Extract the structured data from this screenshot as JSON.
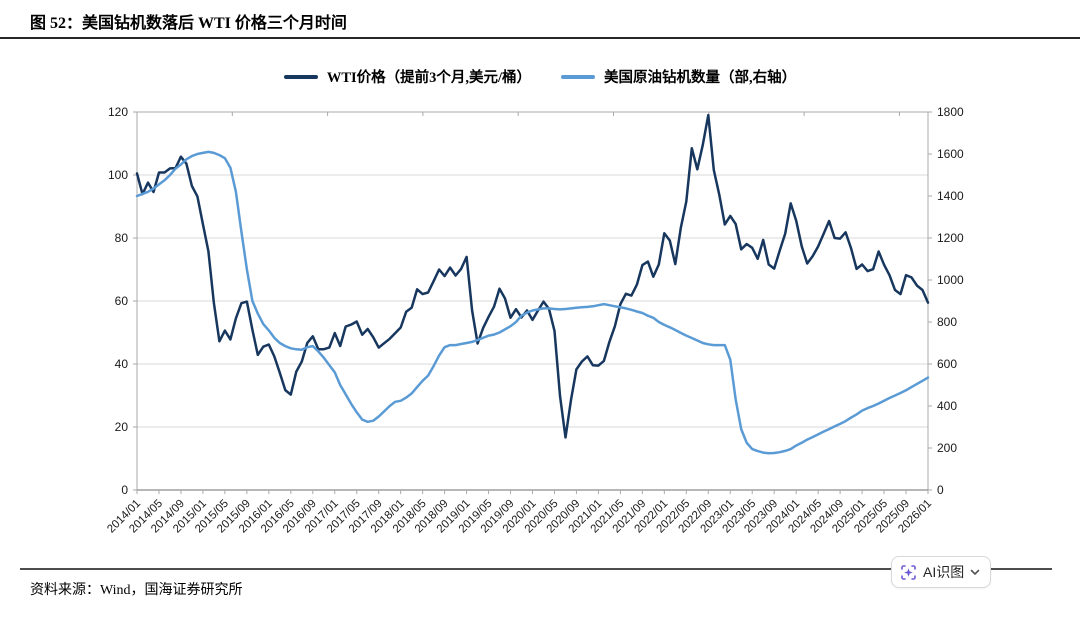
{
  "header": {
    "title": "图 52：美国钻机数落后 WTI 价格三个月时间"
  },
  "footer": {
    "source": "资料来源：Wind，国海证券研究所"
  },
  "ai_button": {
    "label": "AI识图",
    "icon": "scan-sparkle-icon",
    "chevron": "chevron-down-icon"
  },
  "colors": {
    "wti": "#17375E",
    "rigs": "#5B9BD5",
    "grid": "#D9D9D9",
    "box": "#A9A9A9",
    "axis_text": "#1a1a1a",
    "accent_purple": "#6B5BD2"
  },
  "chart_data": {
    "type": "line",
    "title": "图 52：美国钻机数落后 WTI 价格三个月时间",
    "x_start": "2014/01",
    "x_end": "2026/01",
    "x_frequency": "monthly",
    "grid": "horizontal",
    "legend_position": "top",
    "x_tick_labels": [
      "2014/01",
      "2014/05",
      "2014/09",
      "2015/01",
      "2015/05",
      "2015/09",
      "2016/01",
      "2016/05",
      "2016/09",
      "2017/01",
      "2017/05",
      "2017/09",
      "2018/01",
      "2018/05",
      "2018/09",
      "2019/01",
      "2019/05",
      "2019/09",
      "2020/01",
      "2020/05",
      "2020/09",
      "2021/01",
      "2021/05",
      "2021/09",
      "2022/01",
      "2022/05",
      "2022/09",
      "2023/01",
      "2023/05",
      "2023/09",
      "2024/01",
      "2024/05",
      "2024/09",
      "2025/01",
      "2025/05",
      "2025/09",
      "2026/01"
    ],
    "left_axis": {
      "min": 0,
      "max": 120,
      "step": 20,
      "ticks": [
        0,
        20,
        40,
        60,
        80,
        100,
        120
      ]
    },
    "right_axis": {
      "min": 0,
      "max": 1800,
      "step": 200,
      "ticks": [
        0,
        200,
        400,
        600,
        800,
        1000,
        1200,
        1400,
        1600,
        1800
      ]
    },
    "series": [
      {
        "name": "WTI价格（提前3个月,美元/桶）",
        "axis": "left",
        "color": "#17375E",
        "values": [
          100.5,
          93.9,
          97.6,
          94.6,
          100.8,
          100.8,
          102.1,
          102.2,
          105.8,
          103.6,
          96.5,
          93.2,
          84.4,
          75.8,
          59.3,
          47.2,
          50.6,
          47.8,
          54.5,
          59.3,
          59.8,
          50.9,
          42.9,
          45.5,
          46.2,
          42.4,
          37.2,
          31.7,
          30.3,
          37.6,
          40.8,
          46.7,
          48.8,
          44.7,
          44.7,
          45.2,
          49.8,
          45.7,
          51.9,
          52.5,
          53.5,
          49.3,
          51.1,
          48.5,
          45.2,
          46.6,
          48.0,
          49.8,
          51.6,
          56.6,
          57.9,
          63.7,
          62.2,
          62.7,
          66.3,
          70.0,
          67.9,
          70.6,
          68.1,
          70.2,
          74.0,
          57.0,
          46.5,
          51.4,
          55.0,
          58.2,
          63.9,
          60.8,
          54.7,
          57.4,
          54.8,
          57.0,
          54.0,
          57.0,
          59.8,
          57.5,
          50.5,
          29.9,
          16.7,
          28.6,
          38.3,
          40.8,
          42.4,
          39.6,
          39.5,
          41.0,
          47.0,
          52.0,
          59.0,
          62.3,
          61.7,
          65.2,
          71.4,
          72.5,
          67.7,
          71.6,
          81.5,
          79.2,
          71.7,
          83.2,
          91.6,
          108.5,
          101.8,
          109.6,
          119.0,
          101.6,
          93.7,
          84.3,
          87.0,
          84.4,
          76.4,
          78.1,
          76.9,
          73.4,
          79.4,
          71.6,
          70.3,
          76.0,
          81.4,
          91.0,
          85.5,
          77.4,
          71.9,
          74.2,
          77.3,
          81.3,
          85.4,
          80.0,
          79.8,
          81.8,
          76.7,
          70.2,
          71.6,
          69.5,
          70.1,
          75.7,
          71.5,
          68.2,
          63.5,
          62.2,
          68.2,
          67.5,
          64.9,
          63.5,
          59.5
        ]
      },
      {
        "name": "美国原油钻机数量（部,右轴）",
        "axis": "right",
        "color": "#5B9BD5",
        "values": [
          1400,
          1410,
          1420,
          1435,
          1455,
          1475,
          1500,
          1530,
          1550,
          1575,
          1590,
          1600,
          1605,
          1610,
          1605,
          1595,
          1580,
          1535,
          1420,
          1230,
          1050,
          900,
          840,
          790,
          760,
          725,
          700,
          685,
          675,
          670,
          668,
          680,
          685,
          660,
          630,
          595,
          560,
          500,
          455,
          410,
          370,
          335,
          325,
          330,
          350,
          375,
          400,
          420,
          425,
          440,
          460,
          490,
          520,
          545,
          590,
          640,
          680,
          690,
          690,
          695,
          700,
          705,
          715,
          725,
          735,
          740,
          750,
          765,
          780,
          800,
          830,
          845,
          855,
          860,
          865,
          865,
          862,
          860,
          862,
          865,
          868,
          870,
          872,
          875,
          880,
          885,
          880,
          875,
          870,
          865,
          858,
          850,
          843,
          830,
          820,
          800,
          786,
          775,
          762,
          748,
          735,
          724,
          712,
          700,
          694,
          690,
          690,
          690,
          620,
          430,
          290,
          225,
          195,
          185,
          178,
          175,
          176,
          180,
          186,
          195,
          212,
          225,
          240,
          252,
          265,
          278,
          290,
          303,
          315,
          328,
          345,
          360,
          378,
          390,
          400,
          412,
          425,
          438,
          450,
          462,
          475,
          490,
          505,
          520,
          535
        ]
      }
    ]
  }
}
